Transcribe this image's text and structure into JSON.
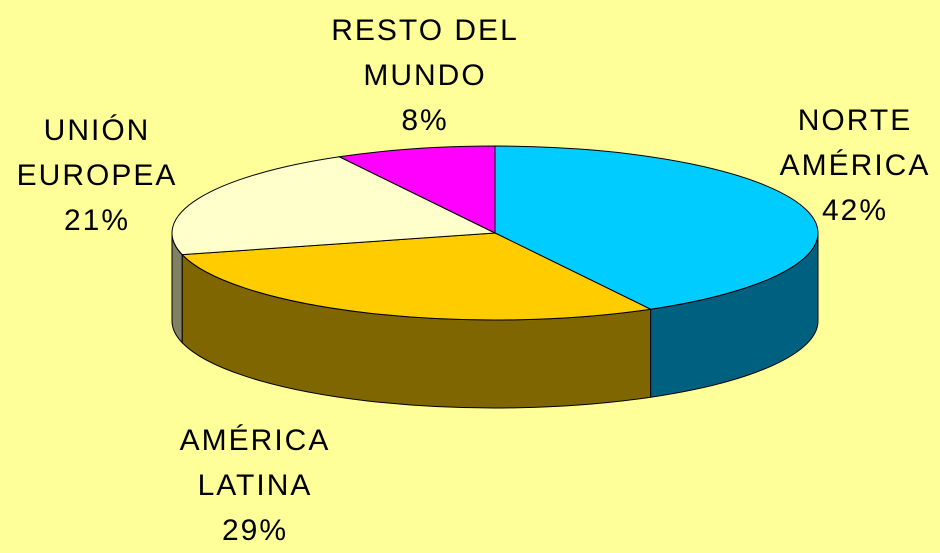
{
  "chart_data": {
    "type": "pie",
    "categories": [
      "NORTE AMÉRICA",
      "AMÉRICA LATINA",
      "UNIÓN EUROPEA",
      "RESTO DEL MUNDO"
    ],
    "values": [
      42,
      29,
      21,
      8
    ],
    "value_labels": [
      "42%",
      "29%",
      "21%",
      "8%"
    ],
    "colors": [
      "#00ccff",
      "#ffcc00",
      "#ffffcc",
      "#ff00ff"
    ],
    "side_colors": [
      "#006080",
      "#806600",
      "#808066",
      "#800080"
    ]
  }
}
